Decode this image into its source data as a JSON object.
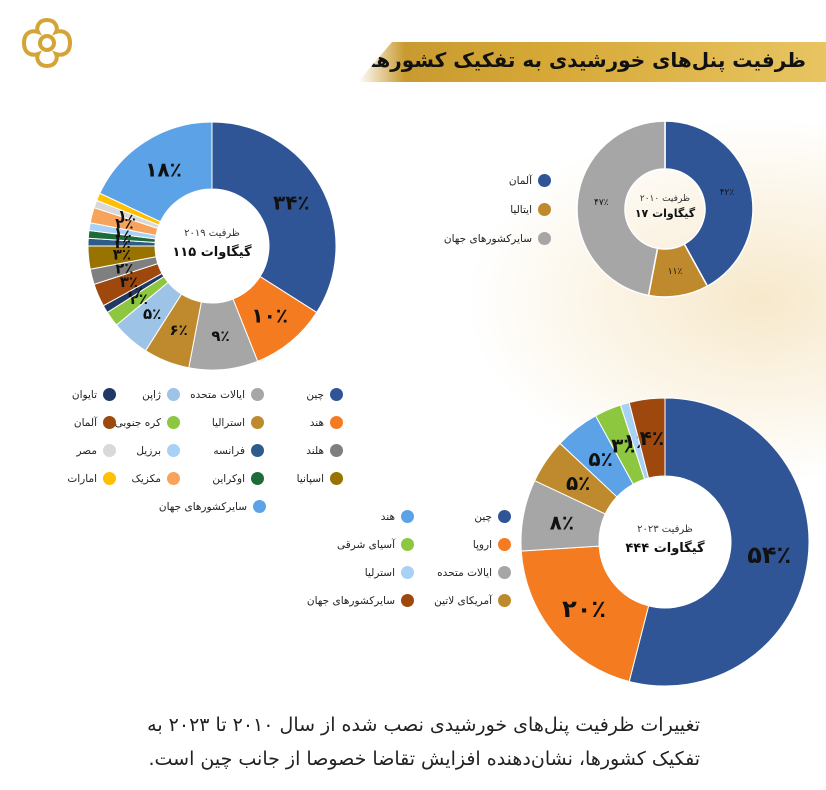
{
  "header": {
    "title": "ظرفیت پنل‌های خورشیدی به تفکیک کشورها"
  },
  "colors": {
    "accent": "#d4a437",
    "brand": "#c4902a"
  },
  "caption": {
    "line1": "تغییرات ظرفیت پنل‌های خورشیدی نصب شده از سال ۲۰۱۰ تا ۲۰۲۳ به",
    "line2": "تفکیک کشورها، نشان‌دهنده افزایش تقاضا خصوصا از جانب چین است."
  },
  "chart_data": [
    {
      "type": "pie",
      "center_label": {
        "line1": "ظرفیت ۲۰۱۰",
        "line2": "۱۷ گیگاوات"
      },
      "series": [
        {
          "name": "آلمان",
          "value": 42,
          "label": "۴۲٪",
          "color": "#2f5597"
        },
        {
          "name": "ایتالیا",
          "value": 11,
          "label": "۱۱٪",
          "color": "#bf8a2d"
        },
        {
          "name": "سایرکشورهای جهان",
          "value": 47,
          "label": "۴۷٪",
          "color": "#a6a6a6"
        }
      ]
    },
    {
      "type": "pie",
      "center_label": {
        "line1": "ظرفیت ۲۰۱۹",
        "line2": "۱۱۵ گیگاوات"
      },
      "series": [
        {
          "name": "چین",
          "value": 34,
          "label": "۳۴٪",
          "color": "#2f5597"
        },
        {
          "name": "هند",
          "value": 10,
          "label": "۱۰٪",
          "color": "#f47b20"
        },
        {
          "name": "ایالات متحده",
          "value": 9,
          "label": "۹٪",
          "color": "#a6a6a6"
        },
        {
          "name": "استرالیا",
          "value": 6,
          "label": "۶٪",
          "color": "#bf8a2d"
        },
        {
          "name": "ژاپن",
          "value": 5,
          "label": "۵٪",
          "color": "#9dc3e6"
        },
        {
          "name": "کره جنوبی",
          "value": 2,
          "label": "۲٪",
          "color": "#8dc63f"
        },
        {
          "name": "تایوان",
          "value": 1,
          "label": "۱٪",
          "color": "#1f3864"
        },
        {
          "name": "آلمان",
          "value": 3,
          "label": "۳٪",
          "color": "#9e480e"
        },
        {
          "name": "هلند",
          "value": 2,
          "label": "۲٪",
          "color": "#7f7f7f"
        },
        {
          "name": "اسپانیا",
          "value": 3,
          "label": "۳٪",
          "color": "#997300"
        },
        {
          "name": "فرانسه",
          "value": 1,
          "label": "۱٪",
          "color": "#2e5c8a"
        },
        {
          "name": "اوکراین",
          "value": 1,
          "label": "۱٪",
          "color": "#1e6b3a"
        },
        {
          "name": "برزیل",
          "value": 1,
          "label": "۱٪",
          "color": "#a9d0f5"
        },
        {
          "name": "مکزیک",
          "value": 2,
          "label": "۲٪",
          "color": "#f7a35c"
        },
        {
          "name": "مصر",
          "value": 1,
          "label": "۱٪",
          "color": "#d9d9d9"
        },
        {
          "name": "امارات",
          "value": 1,
          "label": "",
          "color": "#ffc000"
        },
        {
          "name": "سایرکشورهای جهان",
          "value": 18,
          "label": "۱۸٪",
          "color": "#5ba3e6"
        }
      ],
      "legend_layout": [
        [
          "چین",
          "ایالات متحده",
          "ژاپن",
          "تایوان"
        ],
        [
          "هند",
          "استرالیا",
          "کره جنوبی",
          "آلمان"
        ],
        [
          "هلند",
          "فرانسه",
          "برزیل",
          "مصر"
        ],
        [
          "اسپانیا",
          "اوکراین",
          "مکزیک",
          "امارات"
        ],
        [
          "",
          "",
          "سایرکشورهای جهان",
          ""
        ]
      ]
    },
    {
      "type": "pie",
      "center_label": {
        "line1": "ظرفیت ۲۰۲۳",
        "line2": "۴۴۴ گیگاوات"
      },
      "series": [
        {
          "name": "چین",
          "value": 54,
          "label": "۵۴٪",
          "color": "#2f5597"
        },
        {
          "name": "اروپا",
          "value": 20,
          "label": "۲۰٪",
          "color": "#f47b20"
        },
        {
          "name": "ایالات متحده",
          "value": 8,
          "label": "۸٪",
          "color": "#a6a6a6"
        },
        {
          "name": "آمریکای لاتین",
          "value": 5,
          "label": "۵٪",
          "color": "#bf8a2d"
        },
        {
          "name": "هند",
          "value": 5,
          "label": "۵٪",
          "color": "#5ba3e6"
        },
        {
          "name": "آسیای شرقی",
          "value": 3,
          "label": "۳٪",
          "color": "#8dc63f"
        },
        {
          "name": "استرلیا",
          "value": 1,
          "label": "۱٪",
          "color": "#a9d0f5"
        },
        {
          "name": "سایرکشورهای جهان",
          "value": 4,
          "label": "۴٪",
          "color": "#9e480e"
        }
      ],
      "legend_layout": [
        [
          "چین",
          "هند"
        ],
        [
          "اروپا",
          "آسیای شرقی"
        ],
        [
          "ایالات متحده",
          "استرلیا"
        ],
        [
          "آمریکای لاتین",
          "سایرکشورهای جهان"
        ]
      ]
    }
  ]
}
